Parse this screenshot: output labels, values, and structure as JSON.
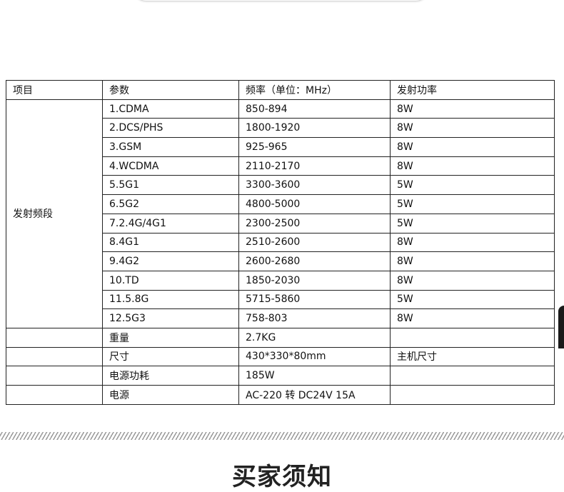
{
  "table": {
    "headers": [
      "项目",
      "参数",
      "频率（单位：MHz）",
      "发射功率"
    ],
    "group_label": "发射频段",
    "bands": [
      {
        "name": "1.CDMA",
        "freq": "850-894",
        "power": "8W"
      },
      {
        "name": "2.DCS/PHS",
        "freq": "1800-1920",
        "power": "8W"
      },
      {
        "name": "3.GSM",
        "freq": "925-965",
        "power": "8W"
      },
      {
        "name": "4.WCDMA",
        "freq": "2110-2170",
        "power": "8W"
      },
      {
        "name": "5.5G1",
        "freq": "3300-3600",
        "power": "5W"
      },
      {
        "name": "6.5G2",
        "freq": "4800-5000",
        "power": "5W"
      },
      {
        "name": "7.2.4G/4G1",
        "freq": "2300-2500",
        "power": "5W"
      },
      {
        "name": "8.4G1",
        "freq": "2510-2600",
        "power": "8W"
      },
      {
        "name": "9.4G2",
        "freq": "2600-2680",
        "power": "8W"
      },
      {
        "name": "10.TD",
        "freq": "1850-2030",
        "power": "8W"
      },
      {
        "name": "11.5.8G",
        "freq": "5715-5860",
        "power": "5W"
      },
      {
        "name": "12.5G3",
        "freq": "758-803",
        "power": "8W"
      }
    ],
    "specs": [
      {
        "name": "重量",
        "value": "2.7KG",
        "note": ""
      },
      {
        "name": "尺寸",
        "value": "430*330*80mm",
        "note": "主机尺寸"
      },
      {
        "name": "电源功耗",
        "value": "185W",
        "note": ""
      },
      {
        "name": "电源",
        "value": "AC-220 转 DC24V 15A",
        "note": ""
      }
    ]
  },
  "section_heading": "买家须知"
}
